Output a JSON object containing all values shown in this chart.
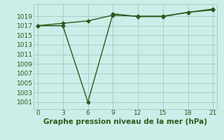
{
  "line1_x": [
    0,
    3,
    6,
    9,
    12,
    15,
    18,
    21
  ],
  "line1_y": [
    1017,
    1017.5,
    1018,
    1019.2,
    1019,
    1019,
    1019.8,
    1020.3
  ],
  "line2_x": [
    0,
    3,
    6,
    9,
    12,
    15,
    18,
    21
  ],
  "line2_y": [
    1017,
    1017,
    1001,
    1019.5,
    1018.9,
    1018.9,
    1019.8,
    1020.5
  ],
  "line_color": "#2d5a1b",
  "bg_color": "#cceee8",
  "grid_color": "#aacccc",
  "xlabel": "Graphe pression niveau de la mer (hPa)",
  "xlim": [
    -0.5,
    21.5
  ],
  "ylim": [
    999.5,
    1021.5
  ],
  "xticks": [
    0,
    3,
    6,
    9,
    12,
    15,
    18,
    21
  ],
  "yticks": [
    1001,
    1003,
    1005,
    1007,
    1009,
    1011,
    1013,
    1015,
    1017,
    1019
  ],
  "tick_fontsize": 6.5,
  "xlabel_fontsize": 7.5
}
